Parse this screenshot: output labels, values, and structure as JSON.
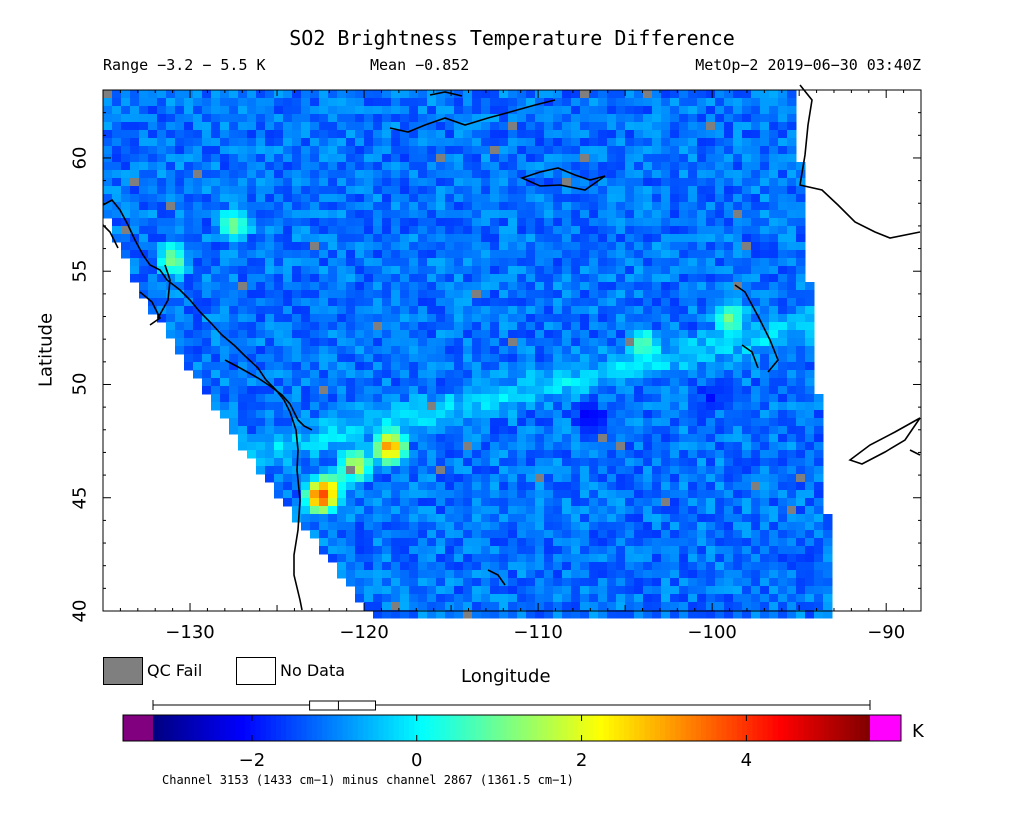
{
  "title": "SO2 Brightness Temperature Difference",
  "subtitle": {
    "range": "Range −3.2 − 5.5 K",
    "mean": "Mean −0.852",
    "meta": "MetOp−2 2019−06−30 03:40Z"
  },
  "axes": {
    "xlabel": "Longitude",
    "ylabel": "Latitude",
    "xticks": [
      "−130",
      "−120",
      "−110",
      "−100",
      "−90"
    ],
    "xtick_values": [
      -130,
      -120,
      -110,
      -100,
      -90
    ],
    "yticks": [
      "40",
      "45",
      "50",
      "55",
      "60"
    ],
    "ytick_values": [
      40,
      45,
      50,
      55,
      60
    ],
    "xlim": [
      -135,
      -88
    ],
    "ylim": [
      40,
      63
    ]
  },
  "legend": {
    "qc_fail": "QC Fail",
    "no_data": "No Data",
    "qc_color": "#7f7f7f",
    "no_data_color": "#ffffff"
  },
  "colorbar": {
    "ticks": [
      "−2",
      "0",
      "2",
      "4"
    ],
    "tick_values": [
      -2,
      0,
      2,
      4
    ],
    "range": [
      -3.2,
      5.5
    ],
    "unit": "K",
    "under_color": "#800080",
    "over_color": "#ff00ff",
    "box_stats": [
      -1.3,
      -0.95,
      -0.5
    ]
  },
  "caption": "Channel 3153 (1433 cm−1) minus channel 2867 (1361.5 cm−1)",
  "chart_data": {
    "type": "heatmap",
    "title": "SO2 Brightness Temperature Difference",
    "xlabel": "Longitude",
    "ylabel": "Latitude",
    "xlim": [
      -135,
      -88
    ],
    "ylim": [
      40,
      63
    ],
    "value_range": [
      -3.2,
      5.5
    ],
    "mean": -0.852,
    "units": "K",
    "features": [
      {
        "lon": -118.5,
        "lat": 47.2,
        "value": 4.8
      },
      {
        "lon": -120.5,
        "lat": 46.4,
        "value": 3.2
      },
      {
        "lon": -122.0,
        "lat": 45.5,
        "value": 2.5
      },
      {
        "lon": -122.5,
        "lat": 45.0,
        "value": 5.3
      },
      {
        "lon": -131.0,
        "lat": 55.5,
        "value": 2.0
      },
      {
        "lon": -127.5,
        "lat": 57.0,
        "value": 1.8
      },
      {
        "lon": -104.0,
        "lat": 51.8,
        "value": 1.4
      },
      {
        "lon": -99.0,
        "lat": 53.0,
        "value": 1.8
      },
      {
        "lon": -107.0,
        "lat": 48.5,
        "value": -2.6
      },
      {
        "lon": -100.0,
        "lat": 49.5,
        "value": -2.2
      }
    ]
  }
}
